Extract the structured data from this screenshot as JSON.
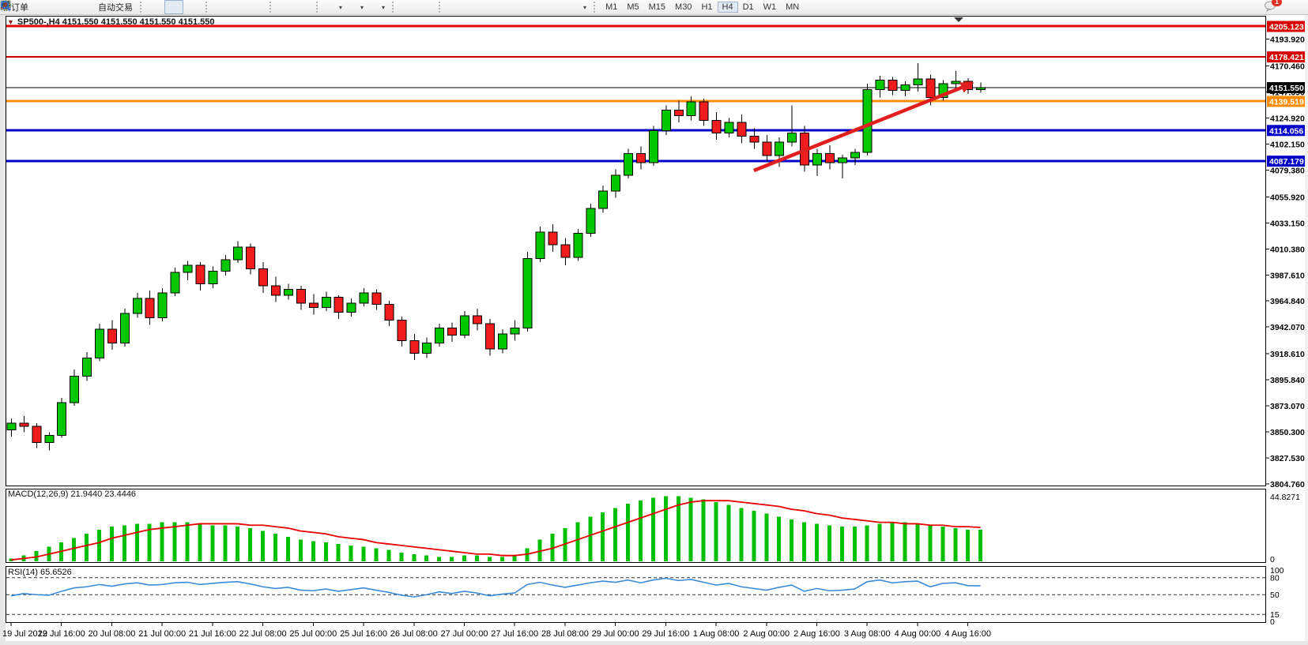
{
  "toolbar": {
    "new_order_label": "新订单",
    "auto_trading_label": "自动交易",
    "timeframes": [
      "M1",
      "M5",
      "M15",
      "M30",
      "H1",
      "H4",
      "D1",
      "W1",
      "MN"
    ],
    "active_timeframe": "H4",
    "chat_badge": "1",
    "icons": [
      "market-icon",
      "community-icon",
      "signals-icon",
      "autotrading-icon",
      "bar-chart-icon",
      "candlestick-chart-icon",
      "line-chart-icon",
      "zoom-in-icon",
      "zoom-out-icon",
      "tile-windows-icon",
      "chart-window-icon",
      "chart-shift-icon",
      "add-indicator-icon",
      "period-clock-icon",
      "template-icon",
      "cursor-icon",
      "crosshair-icon",
      "vertical-line-icon",
      "horizontal-line-icon",
      "trendline-icon",
      "channel-icon",
      "fibonacci-icon",
      "text-icon",
      "label-icon",
      "arrows-icon",
      "search-icon",
      "chat-icon"
    ]
  },
  "chart_header": {
    "dropdown_glyph": "▼",
    "title": "SP500-,H4  4151.550 4151.550 4151.550 4151.550"
  },
  "chart_data": {
    "type": "candlestick",
    "symbol": "SP500-",
    "timeframe": "H4",
    "ylim": [
      3802.6,
      4214.45
    ],
    "grid": false,
    "colors": {
      "bull": "#00C800",
      "bear": "#EE1C1C",
      "wick": "#000000",
      "macd_hist": "#00C000",
      "macd_signal": "#E80000",
      "rsi_line": "#3B8BD8",
      "arrow": "#E02020"
    },
    "price_axis_ticks": [
      "4193.920",
      "4170.460",
      "4147.690",
      "4124.920",
      "4102.150",
      "4079.380",
      "4055.920",
      "4033.150",
      "4010.380",
      "3987.610",
      "3964.840",
      "3942.070",
      "3918.610",
      "3895.840",
      "3873.070",
      "3850.300",
      "3827.530",
      "3804.760"
    ],
    "price_lines": [
      {
        "label": "4205.123",
        "color": "#D80000",
        "width": 3
      },
      {
        "label": "4178.421",
        "color": "#D80000",
        "width": 2
      },
      {
        "label": "4151.550",
        "color": "#000000",
        "width": 1
      },
      {
        "label": "4139.519",
        "color": "#FF8C00",
        "width": 3
      },
      {
        "label": "4114.056",
        "color": "#0000C8",
        "width": 3
      },
      {
        "label": "4087.179",
        "color": "#0000C8",
        "width": 3
      }
    ],
    "time_labels": [
      "19 Jul 2022",
      "19 Jul 16:00",
      "20 Jul 08:00",
      "21 Jul 00:00",
      "21 Jul 16:00",
      "22 Jul 08:00",
      "25 Jul 00:00",
      "25 Jul 16:00",
      "26 Jul 08:00",
      "27 Jul 00:00",
      "27 Jul 16:00",
      "28 Jul 08:00",
      "29 Jul 00:00",
      "29 Jul 16:00",
      "1 Aug 08:00",
      "2 Aug 00:00",
      "2 Aug 16:00",
      "3 Aug 08:00",
      "4 Aug 00:00",
      "4 Aug 16:00"
    ],
    "label_every_n_candles": 4,
    "ohlc": [
      [
        3852,
        3862,
        3846,
        3858
      ],
      [
        3858,
        3864,
        3850,
        3855
      ],
      [
        3855,
        3858,
        3836,
        3841
      ],
      [
        3841,
        3850,
        3834,
        3847
      ],
      [
        3847,
        3880,
        3845,
        3876
      ],
      [
        3876,
        3905,
        3873,
        3899
      ],
      [
        3899,
        3920,
        3895,
        3915
      ],
      [
        3915,
        3945,
        3912,
        3940
      ],
      [
        3940,
        3948,
        3922,
        3928
      ],
      [
        3928,
        3958,
        3925,
        3954
      ],
      [
        3954,
        3972,
        3950,
        3967
      ],
      [
        3967,
        3974,
        3944,
        3950
      ],
      [
        3950,
        3976,
        3947,
        3972
      ],
      [
        3972,
        3994,
        3969,
        3990
      ],
      [
        3990,
        4000,
        3983,
        3996
      ],
      [
        3996,
        3999,
        3974,
        3980
      ],
      [
        3980,
        3995,
        3976,
        3991
      ],
      [
        3991,
        4005,
        3987,
        4001
      ],
      [
        4001,
        4017,
        3998,
        4012
      ],
      [
        4012,
        4015,
        3988,
        3993
      ],
      [
        3993,
        3999,
        3972,
        3978
      ],
      [
        3978,
        3986,
        3964,
        3970
      ],
      [
        3970,
        3980,
        3966,
        3975
      ],
      [
        3975,
        3978,
        3957,
        3963
      ],
      [
        3963,
        3971,
        3953,
        3959
      ],
      [
        3959,
        3973,
        3956,
        3968
      ],
      [
        3968,
        3970,
        3949,
        3955
      ],
      [
        3955,
        3967,
        3951,
        3963
      ],
      [
        3963,
        3976,
        3960,
        3972
      ],
      [
        3972,
        3975,
        3957,
        3962
      ],
      [
        3962,
        3965,
        3943,
        3948
      ],
      [
        3948,
        3951,
        3925,
        3930
      ],
      [
        3930,
        3936,
        3913,
        3919
      ],
      [
        3919,
        3933,
        3915,
        3928
      ],
      [
        3928,
        3945,
        3925,
        3941
      ],
      [
        3941,
        3946,
        3929,
        3935
      ],
      [
        3935,
        3956,
        3932,
        3952
      ],
      [
        3952,
        3958,
        3939,
        3945
      ],
      [
        3945,
        3949,
        3917,
        3923
      ],
      [
        3923,
        3940,
        3919,
        3936
      ],
      [
        3936,
        3948,
        3930,
        3941
      ],
      [
        3941,
        4008,
        3938,
        4002
      ],
      [
        4002,
        4030,
        3999,
        4025
      ],
      [
        4025,
        4032,
        4008,
        4014
      ],
      [
        4014,
        4020,
        3996,
        4003
      ],
      [
        4003,
        4028,
        4000,
        4024
      ],
      [
        4024,
        4050,
        4021,
        4046
      ],
      [
        4046,
        4066,
        4042,
        4061
      ],
      [
        4061,
        4080,
        4055,
        4075
      ],
      [
        4075,
        4098,
        4072,
        4094
      ],
      [
        4094,
        4100,
        4080,
        4086
      ],
      [
        4086,
        4118,
        4083,
        4114
      ],
      [
        4114,
        4136,
        4110,
        4132
      ],
      [
        4132,
        4140,
        4121,
        4127
      ],
      [
        4127,
        4144,
        4123,
        4139
      ],
      [
        4139,
        4142,
        4118,
        4123
      ],
      [
        4123,
        4130,
        4106,
        4112
      ],
      [
        4112,
        4125,
        4108,
        4121
      ],
      [
        4121,
        4128,
        4103,
        4109
      ],
      [
        4109,
        4116,
        4098,
        4104
      ],
      [
        4104,
        4110,
        4087,
        4092
      ],
      [
        4092,
        4108,
        4082,
        4104
      ],
      [
        4104,
        4136,
        4100,
        4112
      ],
      [
        4112,
        4118,
        4078,
        4084
      ],
      [
        4084,
        4098,
        4074,
        4094
      ],
      [
        4094,
        4101,
        4080,
        4086
      ],
      [
        4086,
        4093,
        4072,
        4090
      ],
      [
        4090,
        4098,
        4084,
        4095
      ],
      [
        4095,
        4155,
        4092,
        4150
      ],
      [
        4150,
        4162,
        4143,
        4158
      ],
      [
        4158,
        4161,
        4145,
        4149
      ],
      [
        4149,
        4157,
        4144,
        4154
      ],
      [
        4154,
        4173,
        4148,
        4159
      ],
      [
        4159,
        4163,
        4136,
        4143
      ],
      [
        4143,
        4158,
        4140,
        4155
      ],
      [
        4155,
        4166,
        4150,
        4157
      ],
      [
        4157,
        4160,
        4146,
        4150
      ],
      [
        4150,
        4156,
        4147,
        4151.55
      ]
    ],
    "trend_arrow": {
      "from_candle": 59,
      "from_price": 4079,
      "to_candle": 76.5,
      "to_price": 4156
    },
    "macd": {
      "label": "MACD(12,26,9) 21.9440 23.4446",
      "scale_max_label": "44.8271",
      "scale_max_value": 44.8271,
      "scale_min_label": "0",
      "histogram": [
        2,
        4,
        7,
        10,
        13,
        16,
        19,
        22,
        24,
        25,
        26,
        26,
        27,
        27,
        27,
        26,
        25,
        25,
        24,
        23,
        21,
        19,
        17,
        15,
        14,
        13,
        12,
        11,
        10,
        9,
        8,
        6,
        5,
        4,
        3,
        3,
        4,
        4,
        3,
        3,
        4,
        9,
        15,
        19,
        23,
        27,
        31,
        34,
        37,
        40,
        42,
        44,
        45,
        45,
        44,
        43,
        41,
        39,
        37,
        35,
        33,
        31,
        29,
        27,
        26,
        25,
        24,
        24,
        25,
        26,
        27,
        27,
        26,
        25,
        24,
        23,
        22,
        21.94
      ],
      "signal": [
        1,
        2,
        3,
        5,
        7,
        9,
        11,
        13,
        16,
        18,
        20,
        22,
        23,
        24,
        25,
        26,
        26,
        26,
        26,
        25,
        25,
        24,
        23,
        21,
        20,
        19,
        17,
        16,
        15,
        13,
        12,
        11,
        10,
        9,
        8,
        7,
        6,
        5,
        5,
        4,
        4,
        5,
        7,
        9,
        12,
        15,
        18,
        21,
        24,
        27,
        30,
        33,
        36,
        39,
        41,
        42,
        42,
        42,
        41,
        40,
        39,
        38,
        36,
        35,
        33,
        32,
        30,
        29,
        28,
        27,
        27,
        26,
        26,
        25,
        25,
        24,
        24,
        23.44
      ]
    },
    "rsi": {
      "label": "RSI(14) 65.6526",
      "levels": [
        80,
        50,
        15
      ],
      "scale_labels": [
        {
          "text": "100",
          "value": 100
        },
        {
          "text": "80",
          "value": 80
        },
        {
          "text": "50",
          "value": 50
        },
        {
          "text": "15",
          "value": 15
        },
        {
          "text": "0",
          "value": 0
        }
      ],
      "values": [
        48,
        52,
        50,
        49,
        56,
        62,
        64,
        68,
        65,
        69,
        71,
        67,
        68,
        71,
        72,
        68,
        70,
        72,
        73,
        69,
        64,
        61,
        63,
        58,
        57,
        60,
        56,
        59,
        62,
        58,
        54,
        49,
        46,
        50,
        55,
        52,
        56,
        53,
        48,
        51,
        53,
        68,
        72,
        67,
        63,
        67,
        71,
        74,
        72,
        76,
        71,
        76,
        79,
        75,
        77,
        72,
        67,
        70,
        64,
        61,
        58,
        63,
        67,
        56,
        61,
        57,
        58,
        60,
        73,
        76,
        71,
        73,
        74,
        64,
        70,
        71,
        66,
        65.65
      ]
    }
  }
}
